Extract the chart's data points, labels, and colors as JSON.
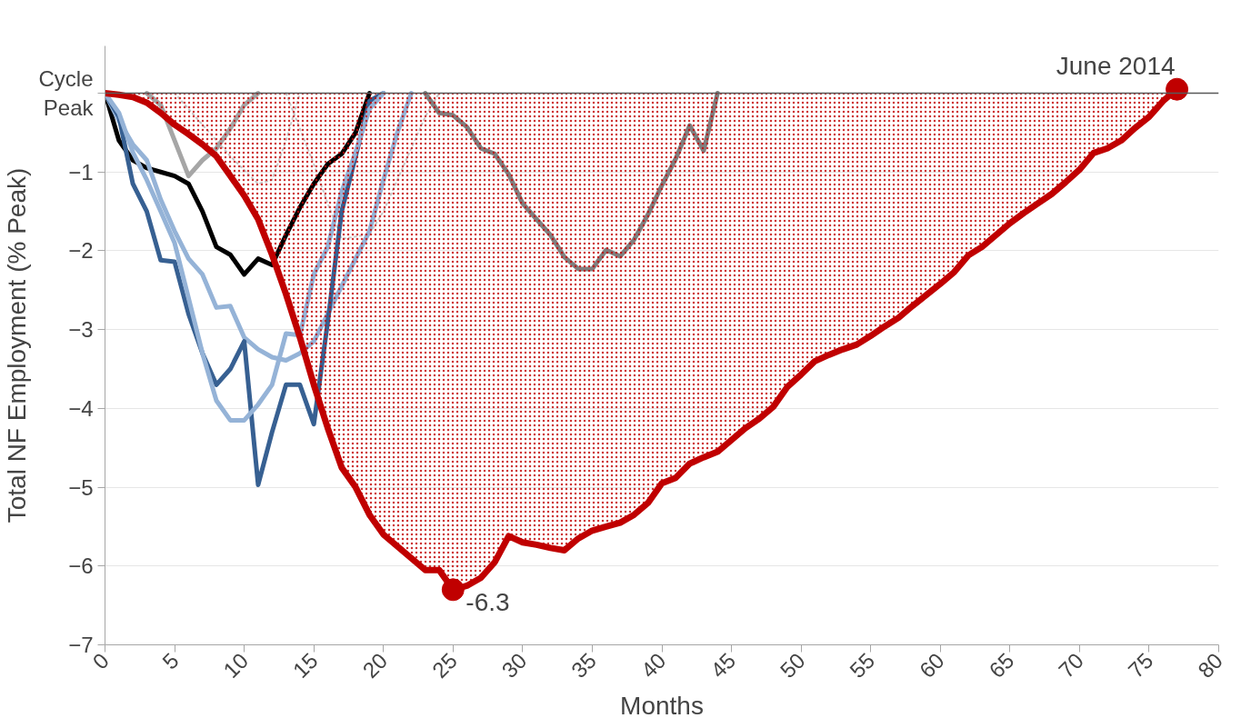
{
  "chart_data": {
    "type": "line",
    "xlabel": "Months",
    "ylabel": "Total NF Employment (% Peak)",
    "xlim": [
      0,
      80
    ],
    "xticks": [
      0,
      5,
      10,
      15,
      20,
      25,
      30,
      35,
      40,
      45,
      50,
      55,
      60,
      65,
      70,
      75,
      80
    ],
    "ylim": [
      -7,
      0.6
    ],
    "yticks": [
      -7,
      -6,
      -5,
      -4,
      -3,
      -2,
      -1,
      {
        "value": 0,
        "label": "Cycle\nPeak"
      }
    ],
    "grid": "y",
    "marker": "none",
    "ref_lines": [
      {
        "axis": "y",
        "value": 0,
        "color": "#595959"
      }
    ],
    "series": [
      {
        "line_style": "dotted",
        "color": "#c8c8c8",
        "x": [
          5,
          7,
          9,
          11,
          12,
          13,
          14
        ],
        "values": [
          0,
          -0.4,
          -0.8,
          -1.15,
          -1.1,
          -0.6,
          0
        ]
      },
      {
        "line_style": "dotted",
        "color": "#c8c8c8",
        "x": [
          13,
          14,
          15,
          16,
          17,
          18,
          19,
          20,
          21,
          22,
          23,
          24
        ],
        "values": [
          0,
          -0.45,
          -0.9,
          -1.4,
          -1.85,
          -1.82,
          -1.79,
          -1.5,
          -1.1,
          -0.7,
          -0.3,
          0
        ]
      },
      {
        "color": "#a6a6a6",
        "x": [
          3,
          4,
          5,
          6,
          7,
          8,
          9,
          10,
          11
        ],
        "values": [
          0,
          -0.15,
          -0.6,
          -1.05,
          -0.85,
          -0.7,
          -0.45,
          -0.15,
          0
        ]
      },
      {
        "color": "#808080",
        "x": [
          23,
          24,
          25,
          26,
          27,
          28,
          29,
          30,
          31,
          32,
          33,
          34,
          35,
          36,
          37,
          38,
          39,
          40,
          41,
          42,
          43,
          44
        ],
        "values": [
          0,
          -0.25,
          -0.28,
          -0.43,
          -0.7,
          -0.77,
          -1.03,
          -1.4,
          -1.6,
          -1.8,
          -2.08,
          -2.23,
          -2.23,
          -1.99,
          -2.07,
          -1.86,
          -1.54,
          -1.17,
          -0.83,
          -0.41,
          -0.73,
          0
        ]
      },
      {
        "color": "#000000",
        "x": [
          0,
          1,
          2,
          3,
          4,
          5,
          6,
          7,
          8,
          9,
          10,
          11,
          12,
          13,
          14,
          15,
          16,
          17,
          18,
          19
        ],
        "values": [
          0,
          -0.6,
          -0.85,
          -0.95,
          -1.0,
          -1.05,
          -1.15,
          -1.5,
          -1.95,
          -2.05,
          -2.3,
          -2.1,
          -2.18,
          -1.8,
          -1.45,
          -1.15,
          -0.9,
          -0.77,
          -0.5,
          0
        ]
      },
      {
        "color": "#95b3d7",
        "x": [
          0,
          1,
          2,
          3,
          4,
          5,
          6,
          7,
          8,
          9,
          10,
          11,
          12,
          13,
          14,
          15,
          16,
          17,
          18,
          19,
          20,
          21,
          22
        ],
        "values": [
          0,
          -0.35,
          -0.65,
          -0.85,
          -1.35,
          -1.75,
          -2.1,
          -2.3,
          -2.72,
          -2.7,
          -3.1,
          -3.25,
          -3.35,
          -3.39,
          -3.3,
          -3.15,
          -2.8,
          -2.45,
          -2.1,
          -1.75,
          -1.1,
          -0.5,
          0
        ]
      },
      {
        "color": "#376092",
        "x": [
          0,
          1,
          2,
          3,
          4,
          5,
          6,
          7,
          8,
          9,
          10,
          11,
          12,
          13,
          14,
          15,
          16,
          17,
          18,
          19,
          20
        ],
        "values": [
          0,
          -0.3,
          -1.15,
          -1.5,
          -2.12,
          -2.14,
          -2.8,
          -3.3,
          -3.7,
          -3.5,
          -3.15,
          -4.97,
          -4.3,
          -3.7,
          -3.7,
          -4.2,
          -2.9,
          -1.5,
          -0.8,
          -0.1,
          0
        ]
      },
      {
        "color": "#95b3d7",
        "x": [
          0,
          1,
          2,
          3,
          4,
          5,
          6,
          7,
          8,
          9,
          10,
          11,
          12,
          13,
          14,
          15,
          16,
          17,
          18,
          19,
          20
        ],
        "values": [
          0,
          -0.25,
          -0.75,
          -1.1,
          -1.5,
          -1.9,
          -2.6,
          -3.3,
          -3.9,
          -4.15,
          -4.15,
          -3.95,
          -3.7,
          -3.05,
          -3.07,
          -2.3,
          -1.95,
          -1.25,
          -0.75,
          -0.2,
          0
        ]
      },
      {
        "type": "area",
        "color": "#c00000",
        "x": [
          0,
          1,
          2,
          3,
          4,
          5,
          6,
          7,
          8,
          9,
          10,
          11,
          12,
          13,
          14,
          15,
          16,
          17,
          18,
          19,
          20,
          21,
          22,
          23,
          24,
          25,
          26,
          27,
          28,
          29,
          30,
          31,
          32,
          33,
          34,
          35,
          36,
          37,
          38,
          39,
          40,
          41,
          42,
          43,
          44,
          45,
          46,
          47,
          48,
          49,
          50,
          51,
          52,
          53,
          54,
          55,
          56,
          57,
          58,
          59,
          60,
          61,
          62,
          63,
          64,
          65,
          66,
          67,
          68,
          69,
          70,
          71,
          72,
          73,
          74,
          75,
          76,
          77
        ],
        "values": [
          0,
          -0.02,
          -0.05,
          -0.12,
          -0.25,
          -0.4,
          -0.52,
          -0.65,
          -0.8,
          -1.05,
          -1.3,
          -1.6,
          -2.05,
          -2.55,
          -3.1,
          -3.7,
          -4.25,
          -4.75,
          -5.0,
          -5.35,
          -5.6,
          -5.75,
          -5.9,
          -6.05,
          -6.05,
          -6.3,
          -6.25,
          -6.15,
          -5.95,
          -5.62,
          -5.7,
          -5.73,
          -5.77,
          -5.8,
          -5.65,
          -5.55,
          -5.5,
          -5.45,
          -5.35,
          -5.2,
          -4.95,
          -4.88,
          -4.7,
          -4.62,
          -4.55,
          -4.4,
          -4.25,
          -4.13,
          -3.98,
          -3.73,
          -3.57,
          -3.4,
          -3.32,
          -3.25,
          -3.19,
          -3.08,
          -2.96,
          -2.85,
          -2.7,
          -2.56,
          -2.42,
          -2.27,
          -2.06,
          -1.95,
          -1.8,
          -1.65,
          -1.52,
          -1.4,
          -1.28,
          -1.13,
          -0.97,
          -0.76,
          -0.7,
          -0.6,
          -0.44,
          -0.3,
          -0.1,
          0.05
        ]
      }
    ],
    "annotations": [
      {
        "text": "-6.3",
        "x": 25,
        "y": -6.3
      },
      {
        "text": "June 2014",
        "x": 77,
        "y": 0.05
      }
    ]
  }
}
